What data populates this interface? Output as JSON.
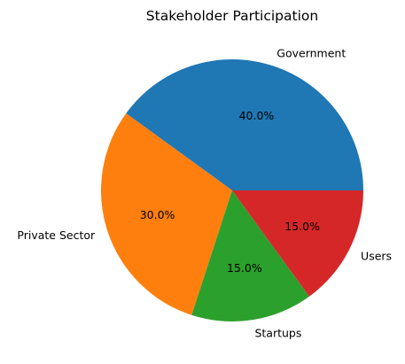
{
  "chart_data": {
    "type": "pie",
    "title": "Stakeholder Participation",
    "categories": [
      "Government",
      "Private Sector",
      "Startups",
      "Users"
    ],
    "values": [
      40,
      30,
      15,
      15
    ],
    "percent_labels": [
      "40.0%",
      "30.0%",
      "15.0%",
      "15.0%"
    ],
    "colors": [
      "#1f77b4",
      "#ff7f0e",
      "#2ca02c",
      "#d62728"
    ],
    "start_angle_deg": 0,
    "direction": "counterclockwise",
    "legend": "none"
  }
}
